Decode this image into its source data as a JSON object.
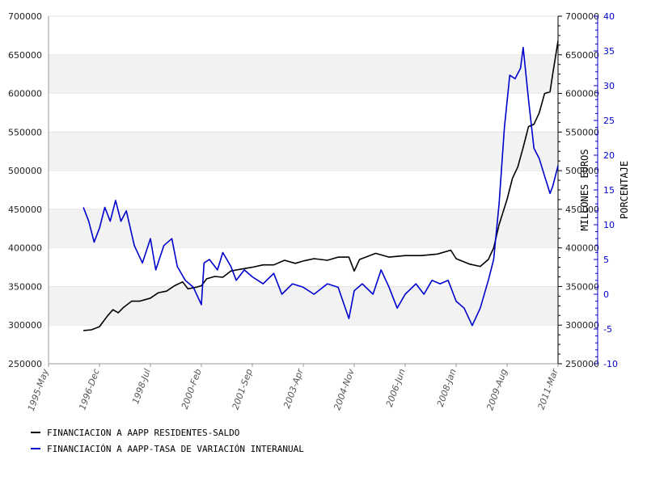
{
  "chart_data": {
    "type": "line",
    "xlabel": "",
    "ylabel_left": "MILLONES EUROS",
    "ylabel_right": "PORCENTAJE",
    "x_ticks": [
      "1995-May",
      "1996-Dec",
      "1998-Jul",
      "2000-Feb",
      "2001-Sep",
      "2003-Apr",
      "2004-Nov",
      "2006-Jun",
      "2008-Jan",
      "2009-Aug",
      "2011-Mar"
    ],
    "ylim_left": [
      250000,
      700000
    ],
    "y_ticks_left": [
      250000,
      300000,
      350000,
      400000,
      450000,
      500000,
      550000,
      600000,
      650000,
      700000
    ],
    "ylim_right": [
      -10,
      40
    ],
    "y_ticks_right": [
      -10,
      -5,
      0,
      5,
      10,
      15,
      20,
      25,
      30,
      35,
      40
    ],
    "grid": "horizontal bands",
    "legend_placement": "bottom-left",
    "colors": {
      "left": "#000000",
      "right": "#0000cc",
      "band": "#f2f2f2"
    },
    "series": [
      {
        "name": "FINANCIACION A AAPP RESIDENTES-SALDO",
        "axis": "left",
        "points": [
          [
            "1996-Jun",
            293000
          ],
          [
            "1996-Sep",
            294000
          ],
          [
            "1996-Dec",
            298000
          ],
          [
            "1997-Mar",
            312000
          ],
          [
            "1997-May",
            320000
          ],
          [
            "1997-Jul",
            316000
          ],
          [
            "1997-Sep",
            323000
          ],
          [
            "1997-Dec",
            331000
          ],
          [
            "1998-Mar",
            331000
          ],
          [
            "1998-Jul",
            335000
          ],
          [
            "1998-Oct",
            342000
          ],
          [
            "1999-Jan",
            344000
          ],
          [
            "1999-Apr",
            351000
          ],
          [
            "1999-Jul",
            356000
          ],
          [
            "1999-Sep",
            347000
          ],
          [
            "1999-Dec",
            349000
          ],
          [
            "2000-Feb",
            351000
          ],
          [
            "2000-Apr",
            360000
          ],
          [
            "2000-Jul",
            363000
          ],
          [
            "2000-Oct",
            362000
          ],
          [
            "2001-Jan",
            370000
          ],
          [
            "2001-Apr",
            372000
          ],
          [
            "2001-Sep",
            375000
          ],
          [
            "2002-Jan",
            378000
          ],
          [
            "2002-May",
            378000
          ],
          [
            "2002-Sep",
            384000
          ],
          [
            "2003-Jan",
            380000
          ],
          [
            "2003-Apr",
            383000
          ],
          [
            "2003-Aug",
            386000
          ],
          [
            "2004-Jan",
            384000
          ],
          [
            "2004-May",
            388000
          ],
          [
            "2004-Sep",
            388000
          ],
          [
            "2004-Nov",
            370000
          ],
          [
            "2005-Jan",
            385000
          ],
          [
            "2005-Jul",
            393000
          ],
          [
            "2005-Dec",
            388000
          ],
          [
            "2006-Jun",
            390000
          ],
          [
            "2006-Dec",
            390000
          ],
          [
            "2007-Jun",
            392000
          ],
          [
            "2007-Nov",
            397000
          ],
          [
            "2008-Jan",
            386000
          ],
          [
            "2008-Jun",
            379000
          ],
          [
            "2008-Oct",
            376000
          ],
          [
            "2009-Jan",
            385000
          ],
          [
            "2009-Mar",
            400000
          ],
          [
            "2009-May",
            430000
          ],
          [
            "2009-Aug",
            463000
          ],
          [
            "2009-Oct",
            490000
          ],
          [
            "2009-Dec",
            505000
          ],
          [
            "2010-Feb",
            530000
          ],
          [
            "2010-Apr",
            557000
          ],
          [
            "2010-Jun",
            560000
          ],
          [
            "2010-Aug",
            575000
          ],
          [
            "2010-Oct",
            600000
          ],
          [
            "2010-Dec",
            602000
          ],
          [
            "2011-Jan",
            625000
          ],
          [
            "2011-Mar",
            668000
          ]
        ]
      },
      {
        "name": "FINANCIACIÓN A AAPP-TASA DE VARIACIÓN INTERANUAL",
        "axis": "right",
        "points": [
          [
            "1996-Jun",
            12.5
          ],
          [
            "1996-Aug",
            10.5
          ],
          [
            "1996-Oct",
            7.5
          ],
          [
            "1996-Dec",
            9.5
          ],
          [
            "1997-Feb",
            12.5
          ],
          [
            "1997-Apr",
            10.5
          ],
          [
            "1997-Jun",
            13.5
          ],
          [
            "1997-Aug",
            10.5
          ],
          [
            "1997-Oct",
            12
          ],
          [
            "1998-Jan",
            7
          ],
          [
            "1998-Apr",
            4.5
          ],
          [
            "1998-Jul",
            8
          ],
          [
            "1998-Sep",
            3.5
          ],
          [
            "1998-Dec",
            7
          ],
          [
            "1999-Mar",
            8
          ],
          [
            "1999-May",
            4
          ],
          [
            "1999-Aug",
            2
          ],
          [
            "1999-Nov",
            1
          ],
          [
            "2000-Feb",
            -1.5
          ],
          [
            "2000-Mar",
            4.5
          ],
          [
            "2000-May",
            5
          ],
          [
            "2000-Aug",
            3.5
          ],
          [
            "2000-Oct",
            6
          ],
          [
            "2001-Jan",
            4
          ],
          [
            "2001-Mar",
            2
          ],
          [
            "2001-Jun",
            3.5
          ],
          [
            "2001-Sep",
            2.5
          ],
          [
            "2002-Jan",
            1.5
          ],
          [
            "2002-May",
            3
          ],
          [
            "2002-Aug",
            0
          ],
          [
            "2002-Dec",
            1.5
          ],
          [
            "2003-Apr",
            1
          ],
          [
            "2003-Aug",
            0
          ],
          [
            "2004-Jan",
            1.5
          ],
          [
            "2004-May",
            1
          ],
          [
            "2004-Sep",
            -3.5
          ],
          [
            "2004-Nov",
            0.5
          ],
          [
            "2005-Feb",
            1.5
          ],
          [
            "2005-Jun",
            0
          ],
          [
            "2005-Sep",
            3.5
          ],
          [
            "2005-Dec",
            1
          ],
          [
            "2006-Mar",
            -2
          ],
          [
            "2006-Jun",
            0
          ],
          [
            "2006-Oct",
            1.5
          ],
          [
            "2007-Jan",
            0
          ],
          [
            "2007-Apr",
            2
          ],
          [
            "2007-Jul",
            1.5
          ],
          [
            "2007-Oct",
            2
          ],
          [
            "2008-Jan",
            -1
          ],
          [
            "2008-Apr",
            -2
          ],
          [
            "2008-Jul",
            -4.5
          ],
          [
            "2008-Oct",
            -2
          ],
          [
            "2009-Jan",
            2
          ],
          [
            "2009-Mar",
            5
          ],
          [
            "2009-May",
            13
          ],
          [
            "2009-Jul",
            24
          ],
          [
            "2009-Sep",
            31.5
          ],
          [
            "2009-Nov",
            31
          ],
          [
            "2010-Jan",
            32.5
          ],
          [
            "2010-Feb",
            35.5
          ],
          [
            "2010-Apr",
            28
          ],
          [
            "2010-Jun",
            21
          ],
          [
            "2010-Aug",
            19.5
          ],
          [
            "2010-Oct",
            17
          ],
          [
            "2010-Dec",
            14.5
          ],
          [
            "2011-Jan",
            15.5
          ],
          [
            "2011-Mar",
            18.5
          ]
        ]
      }
    ]
  }
}
